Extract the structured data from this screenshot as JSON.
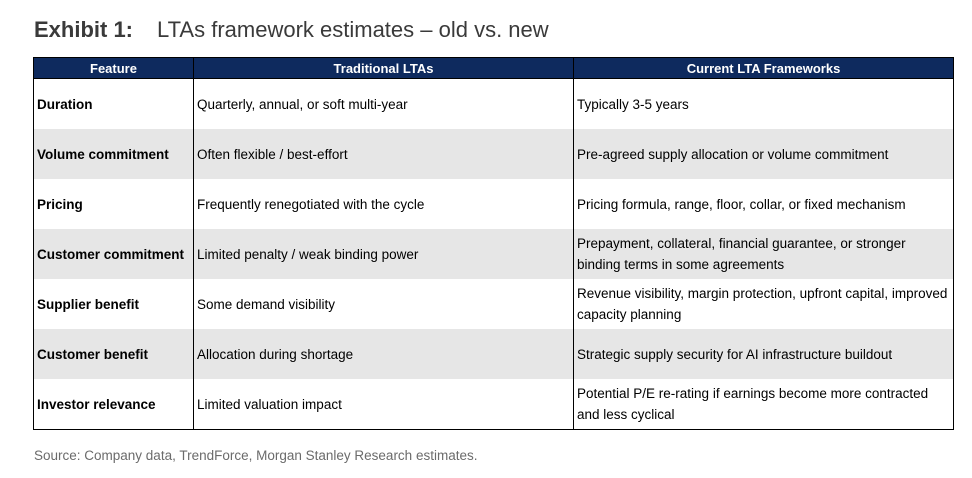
{
  "title": {
    "label": "Exhibit 1:",
    "text": "LTAs framework estimates – old vs. new"
  },
  "table": {
    "headers": [
      "Feature",
      "Traditional LTAs",
      "Current LTA Frameworks"
    ],
    "rows": [
      [
        "Duration",
        "Quarterly, annual, or soft multi-year",
        "Typically 3-5 years"
      ],
      [
        "Volume commitment",
        "Often flexible / best-effort",
        "Pre-agreed supply allocation or volume commitment"
      ],
      [
        "Pricing",
        "Frequently renegotiated with the cycle",
        "Pricing formula, range, floor, collar, or fixed mechanism"
      ],
      [
        "Customer commitment",
        "Limited penalty / weak binding power",
        "Prepayment, collateral, financial guarantee, or stronger binding terms in some agreements"
      ],
      [
        "Supplier benefit",
        "Some demand visibility",
        "Revenue visibility, margin protection, upfront capital, improved capacity planning"
      ],
      [
        "Customer benefit",
        "Allocation during shortage",
        "Strategic supply security for AI infrastructure buildout"
      ],
      [
        "Investor relevance",
        "Limited valuation impact",
        "Potential P/E re-rating if earnings become more contracted and less cyclical"
      ]
    ]
  },
  "source": "Source: Company data, TrendForce, Morgan Stanley Research estimates.",
  "colors": {
    "header_bg": "#0e2a5e",
    "stripe_bg": "#e6e6e6",
    "title_text": "#3a3a3a",
    "source_text": "#6b6b6b"
  }
}
